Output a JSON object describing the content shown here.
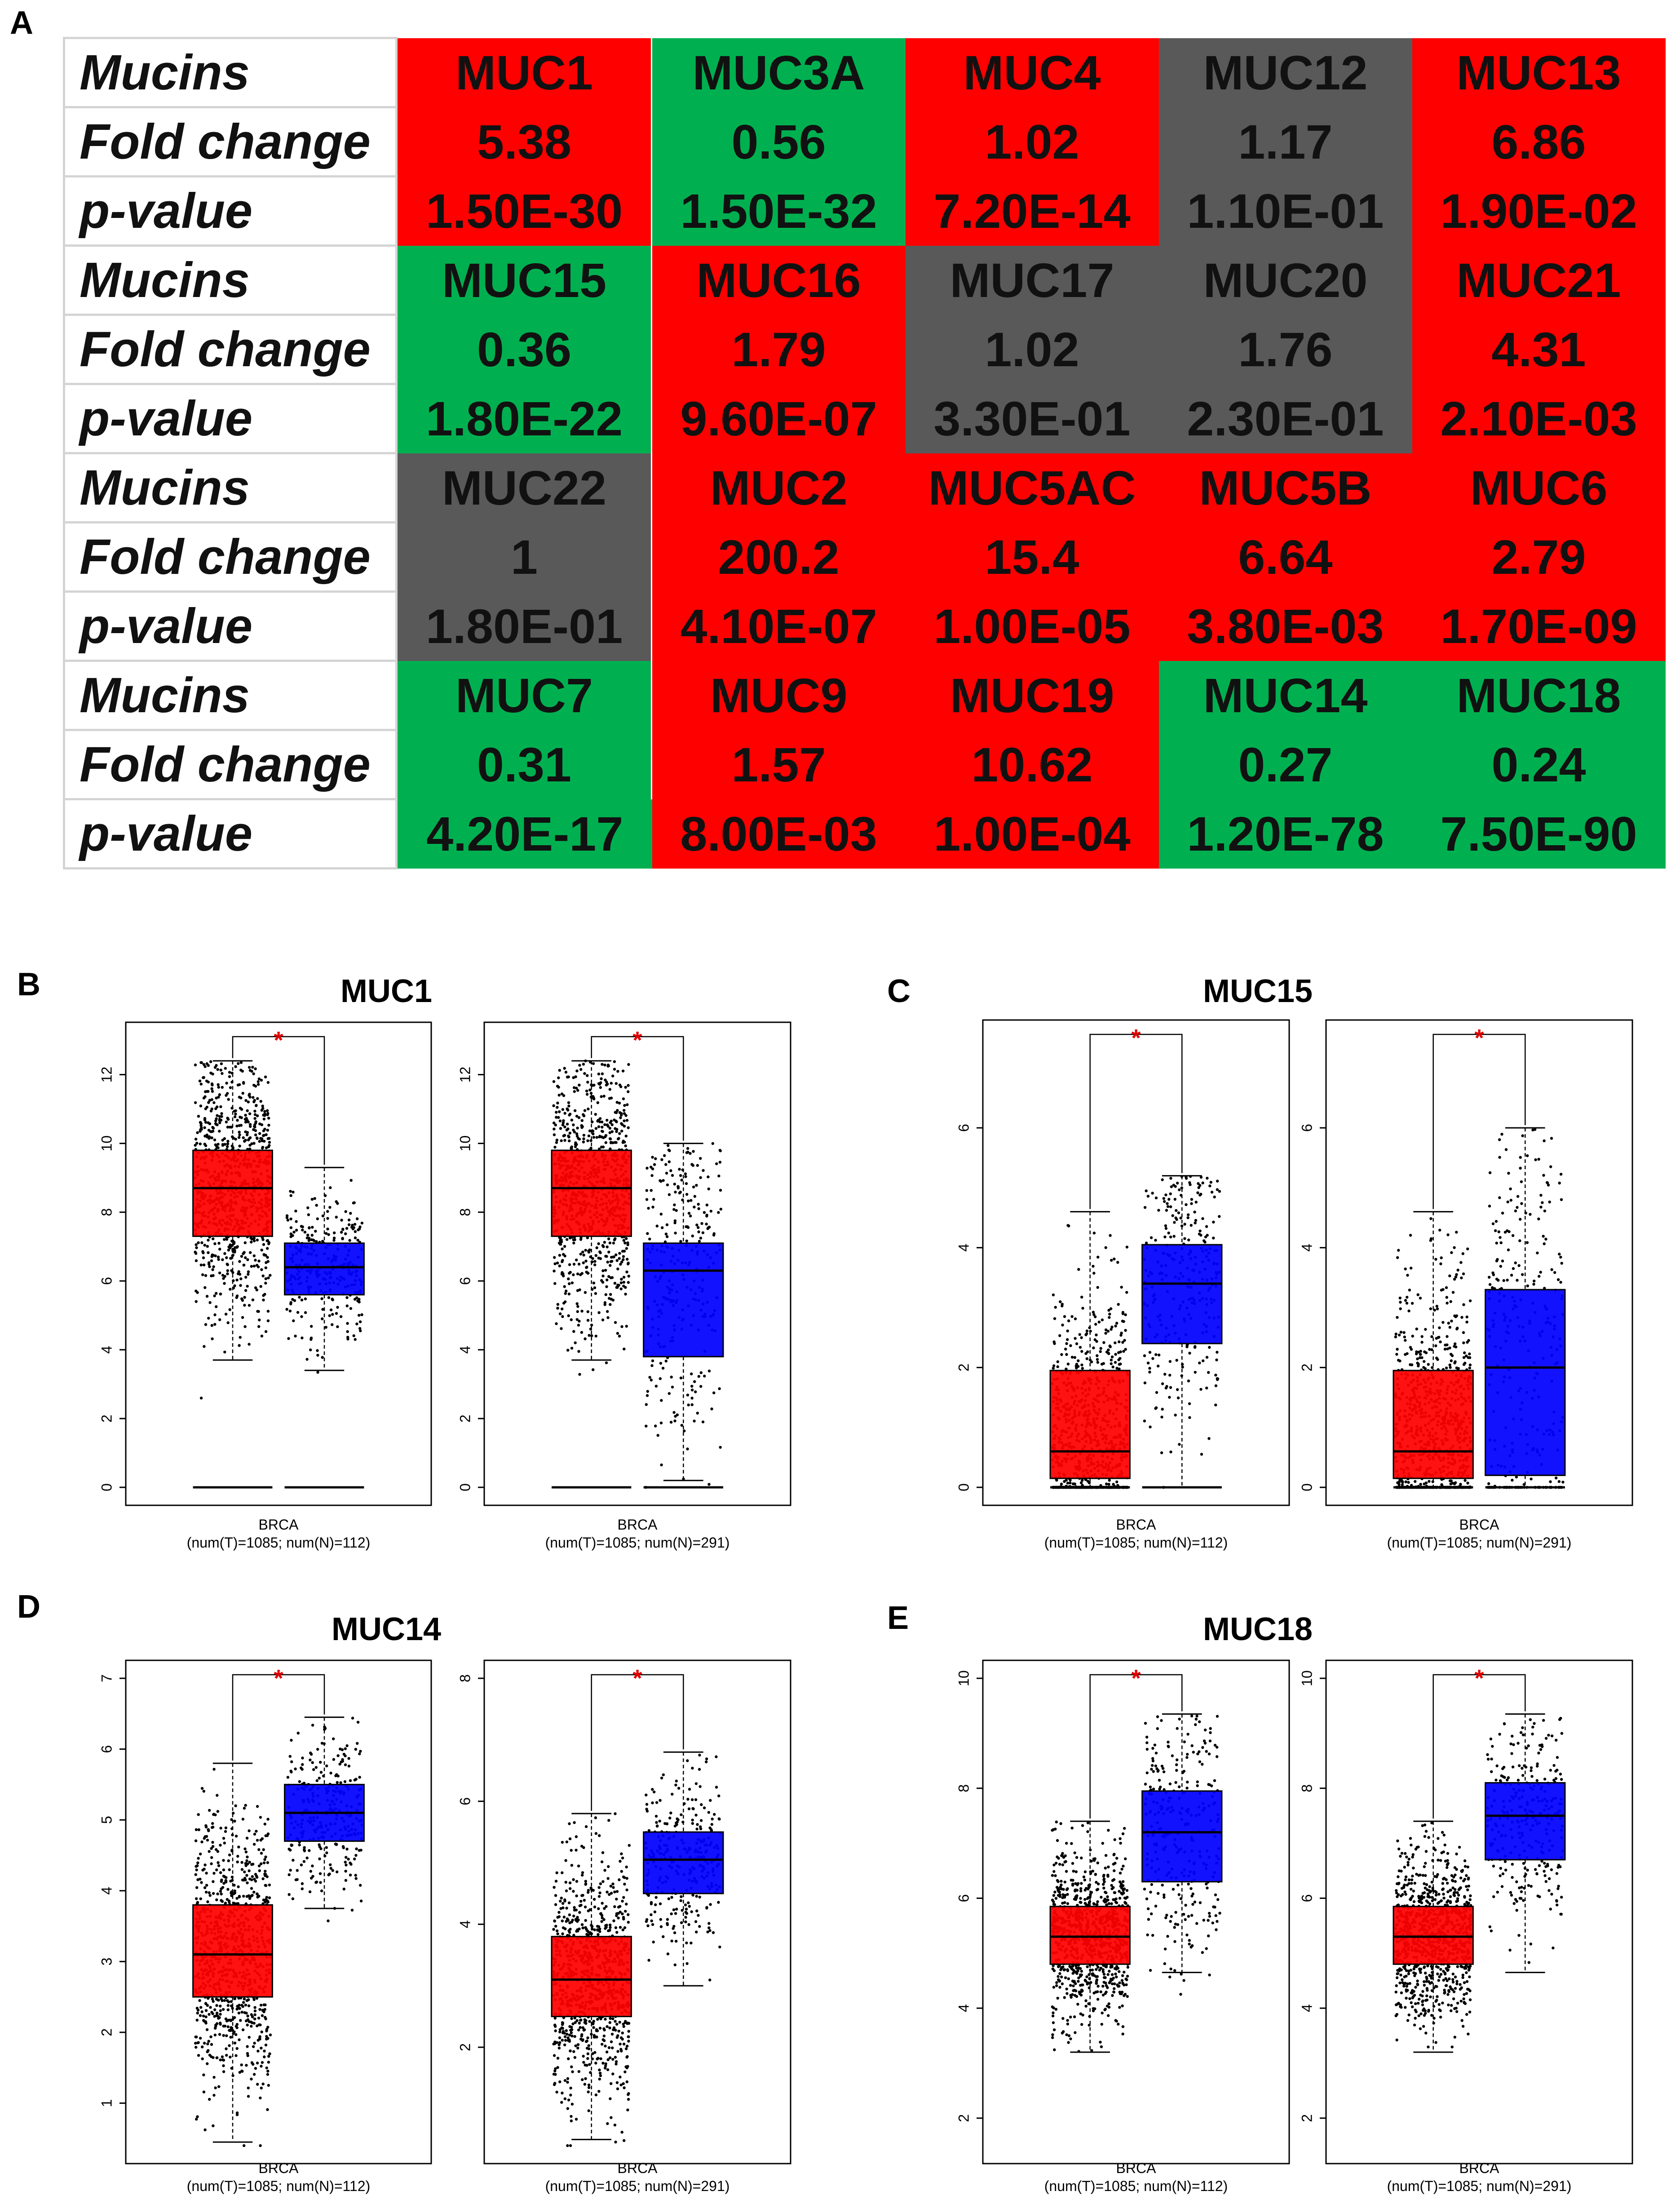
{
  "panel_labels": {
    "A": "A",
    "B": "B",
    "C": "C",
    "D": "D",
    "E": "E"
  },
  "table": {
    "row_labels": [
      "Mucins",
      "Fold change",
      "p-value"
    ],
    "groups": [
      [
        {
          "name": "MUC1",
          "fold": "5.38",
          "p": "1.50E-30",
          "color": "#ff0000"
        },
        {
          "name": "MUC3A",
          "fold": "0.56",
          "p": "1.50E-32",
          "color": "#00b050"
        },
        {
          "name": "MUC4",
          "fold": "1.02",
          "p": "7.20E-14",
          "color": "#ff0000"
        },
        {
          "name": "MUC12",
          "fold": "1.17",
          "p": "1.10E-01",
          "color": "#595959"
        },
        {
          "name": "MUC13",
          "fold": "6.86",
          "p": "1.90E-02",
          "color": "#ff0000"
        }
      ],
      [
        {
          "name": "MUC15",
          "fold": "0.36",
          "p": "1.80E-22",
          "color": "#00b050"
        },
        {
          "name": "MUC16",
          "fold": "1.79",
          "p": "9.60E-07",
          "color": "#ff0000"
        },
        {
          "name": "MUC17",
          "fold": "1.02",
          "p": "3.30E-01",
          "color": "#595959"
        },
        {
          "name": "MUC20",
          "fold": "1.76",
          "p": "2.30E-01",
          "color": "#595959"
        },
        {
          "name": "MUC21",
          "fold": "4.31",
          "p": "2.10E-03",
          "color": "#ff0000"
        }
      ],
      [
        {
          "name": "MUC22",
          "fold": "1",
          "p": "1.80E-01",
          "color": "#595959"
        },
        {
          "name": "MUC2",
          "fold": "200.2",
          "p": "4.10E-07",
          "color": "#ff0000"
        },
        {
          "name": "MUC5AC",
          "fold": "15.4",
          "p": "1.00E-05",
          "color": "#ff0000"
        },
        {
          "name": "MUC5B",
          "fold": "6.64",
          "p": "3.80E-03",
          "color": "#ff0000"
        },
        {
          "name": "MUC6",
          "fold": "2.79",
          "p": "1.70E-09",
          "color": "#ff0000"
        }
      ],
      [
        {
          "name": "MUC7",
          "fold": "0.31",
          "p": "4.20E-17",
          "color": "#00b050"
        },
        {
          "name": "MUC9",
          "fold": "1.57",
          "p": "8.00E-03",
          "color": "#ff0000"
        },
        {
          "name": "MUC19",
          "fold": "10.62",
          "p": "1.00E-04",
          "color": "#ff0000"
        },
        {
          "name": "MUC14",
          "fold": "0.27",
          "p": "1.20E-78",
          "color": "#00b050"
        },
        {
          "name": "MUC18",
          "fold": "0.24",
          "p": "7.50E-90",
          "color": "#00b050"
        }
      ]
    ]
  },
  "chart_data": [
    {
      "panel": "B",
      "title": "MUC1",
      "type": "box",
      "ylim": [
        0,
        13
      ],
      "yticks": [
        0,
        2,
        4,
        6,
        8,
        10,
        12
      ],
      "significance": "*",
      "xlabel": "BRCA",
      "sublabel": "(num(T)=1085; num(N)=112)",
      "boxes": [
        {
          "group": "Tumor",
          "color": "#ff0000",
          "q1": 7.3,
          "median": 8.7,
          "q3": 9.8,
          "whisker_low": 3.7,
          "whisker_high": 12.4,
          "min": 0
        },
        {
          "group": "Normal",
          "color": "#0000ff",
          "q1": 5.6,
          "median": 6.4,
          "q3": 7.1,
          "whisker_low": 3.4,
          "whisker_high": 9.3,
          "min": 0
        }
      ]
    },
    {
      "panel": "B",
      "title": "",
      "type": "box",
      "ylim": [
        0,
        13
      ],
      "yticks": [
        0,
        2,
        4,
        6,
        8,
        10,
        12
      ],
      "significance": "*",
      "xlabel": "BRCA",
      "sublabel": "(num(T)=1085; num(N)=291)",
      "boxes": [
        {
          "group": "Tumor",
          "color": "#ff0000",
          "q1": 7.3,
          "median": 8.7,
          "q3": 9.8,
          "whisker_low": 3.7,
          "whisker_high": 12.4,
          "min": 0
        },
        {
          "group": "Normal",
          "color": "#0000ff",
          "q1": 3.8,
          "median": 6.3,
          "q3": 7.1,
          "whisker_low": 0.2,
          "whisker_high": 10.0,
          "min": 0
        }
      ]
    },
    {
      "panel": "C",
      "title": "MUC15",
      "type": "box",
      "ylim": [
        0,
        7.5
      ],
      "yticks": [
        0,
        2,
        4,
        6
      ],
      "significance": "*",
      "xlabel": "BRCA",
      "sublabel": "(num(T)=1085; num(N)=112)",
      "boxes": [
        {
          "group": "Tumor",
          "color": "#ff0000",
          "q1": 0.15,
          "median": 0.6,
          "q3": 1.95,
          "whisker_low": 0,
          "whisker_high": 4.6,
          "min": 0
        },
        {
          "group": "Normal",
          "color": "#0000ff",
          "q1": 2.4,
          "median": 3.4,
          "q3": 4.05,
          "whisker_low": 0,
          "whisker_high": 5.2,
          "min": 0
        }
      ]
    },
    {
      "panel": "C",
      "title": "",
      "type": "box",
      "ylim": [
        0,
        7.5
      ],
      "yticks": [
        0,
        2,
        4,
        6
      ],
      "significance": "*",
      "xlabel": "BRCA",
      "sublabel": "(num(T)=1085; num(N)=291)",
      "boxes": [
        {
          "group": "Tumor",
          "color": "#ff0000",
          "q1": 0.15,
          "median": 0.6,
          "q3": 1.95,
          "whisker_low": 0,
          "whisker_high": 4.6,
          "min": 0
        },
        {
          "group": "Normal",
          "color": "#0000ff",
          "q1": 0.2,
          "median": 2.0,
          "q3": 3.3,
          "whisker_low": 0,
          "whisker_high": 6.0,
          "min": 0
        }
      ]
    },
    {
      "panel": "D",
      "title": "MUC14",
      "type": "box",
      "ylim": [
        0.4,
        7
      ],
      "yticks": [
        1,
        2,
        3,
        4,
        5,
        6,
        7
      ],
      "significance": "*",
      "xlabel": "BRCA",
      "sublabel": "(num(T)=1085; num(N)=112)",
      "boxes": [
        {
          "group": "Tumor",
          "color": "#ff0000",
          "q1": 2.5,
          "median": 3.1,
          "q3": 3.8,
          "whisker_low": 0.45,
          "whisker_high": 5.8
        },
        {
          "group": "Normal",
          "color": "#0000ff",
          "q1": 4.7,
          "median": 5.1,
          "q3": 5.5,
          "whisker_low": 3.75,
          "whisker_high": 6.45
        }
      ]
    },
    {
      "panel": "D",
      "title": "",
      "type": "box",
      "ylim": [
        0.4,
        8
      ],
      "yticks": [
        2,
        4,
        6,
        8
      ],
      "significance": "*",
      "xlabel": "BRCA",
      "sublabel": "(num(T)=1085; num(N)=291)",
      "boxes": [
        {
          "group": "Tumor",
          "color": "#ff0000",
          "q1": 2.5,
          "median": 3.1,
          "q3": 3.8,
          "whisker_low": 0.5,
          "whisker_high": 5.8
        },
        {
          "group": "Normal",
          "color": "#0000ff",
          "q1": 4.5,
          "median": 5.05,
          "q3": 5.5,
          "whisker_low": 3.0,
          "whisker_high": 6.8
        }
      ]
    },
    {
      "panel": "E",
      "title": "MUC18",
      "type": "box",
      "ylim": [
        1.5,
        10
      ],
      "yticks": [
        2,
        4,
        6,
        8,
        10
      ],
      "significance": "*",
      "xlabel": "BRCA",
      "sublabel": "(num(T)=1085; num(N)=112)",
      "boxes": [
        {
          "group": "Tumor",
          "color": "#ff0000",
          "q1": 4.8,
          "median": 5.3,
          "q3": 5.85,
          "whisker_low": 3.2,
          "whisker_high": 7.4
        },
        {
          "group": "Normal",
          "color": "#0000ff",
          "q1": 6.3,
          "median": 7.2,
          "q3": 7.95,
          "whisker_low": 4.65,
          "whisker_high": 9.35
        }
      ]
    },
    {
      "panel": "E",
      "title": "",
      "type": "box",
      "ylim": [
        1.5,
        10
      ],
      "yticks": [
        2,
        4,
        6,
        8,
        10
      ],
      "significance": "*",
      "xlabel": "BRCA",
      "sublabel": "(num(T)=1085; num(N)=291)",
      "boxes": [
        {
          "group": "Tumor",
          "color": "#ff0000",
          "q1": 4.8,
          "median": 5.3,
          "q3": 5.85,
          "whisker_low": 3.2,
          "whisker_high": 7.4
        },
        {
          "group": "Normal",
          "color": "#0000ff",
          "q1": 6.7,
          "median": 7.5,
          "q3": 8.1,
          "whisker_low": 4.65,
          "whisker_high": 9.35
        }
      ]
    }
  ]
}
